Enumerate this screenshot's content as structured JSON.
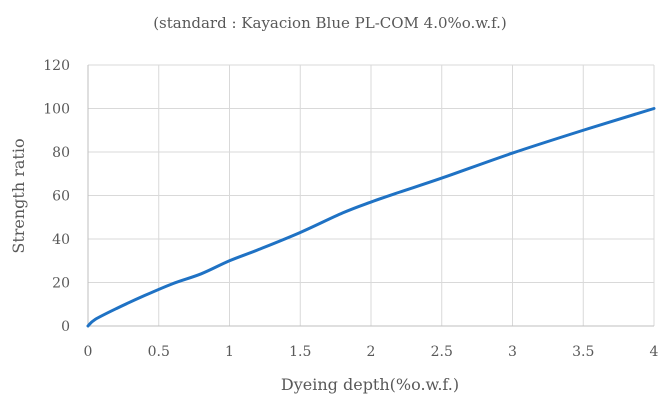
{
  "chart_data": {
    "type": "line",
    "title": "",
    "subtitle": "(standard : Kayacion Blue PL-COM 4.0%o.w.f.)",
    "xlabel": "Dyeing depth(%o.w.f.)",
    "ylabel": "Strength ratio",
    "xlim": [
      0,
      4
    ],
    "ylim": [
      0,
      120
    ],
    "xticks": [
      0,
      0.5,
      1,
      1.5,
      2,
      2.5,
      3,
      3.5,
      4
    ],
    "xtick_labels": [
      "0",
      "0.5",
      "1",
      "1.5",
      "2",
      "2.5",
      "3",
      "3.5",
      "4"
    ],
    "yticks": [
      0,
      20,
      40,
      60,
      80,
      100,
      120
    ],
    "ytick_labels": [
      "0",
      "20",
      "40",
      "60",
      "80",
      "100",
      "120"
    ],
    "grid": true,
    "legend": "none",
    "series": [
      {
        "color": "#1f72c4",
        "x": [
          0,
          0.05,
          0.2,
          0.4,
          0.6,
          0.8,
          1,
          1.2,
          1.5,
          1.8,
          2,
          2.2,
          2.5,
          3,
          3.5,
          4
        ],
        "y": [
          0,
          3,
          8,
          14,
          19.5,
          24,
          30,
          35,
          43,
          52,
          57,
          61.5,
          68,
          79.5,
          90,
          100
        ]
      }
    ]
  }
}
